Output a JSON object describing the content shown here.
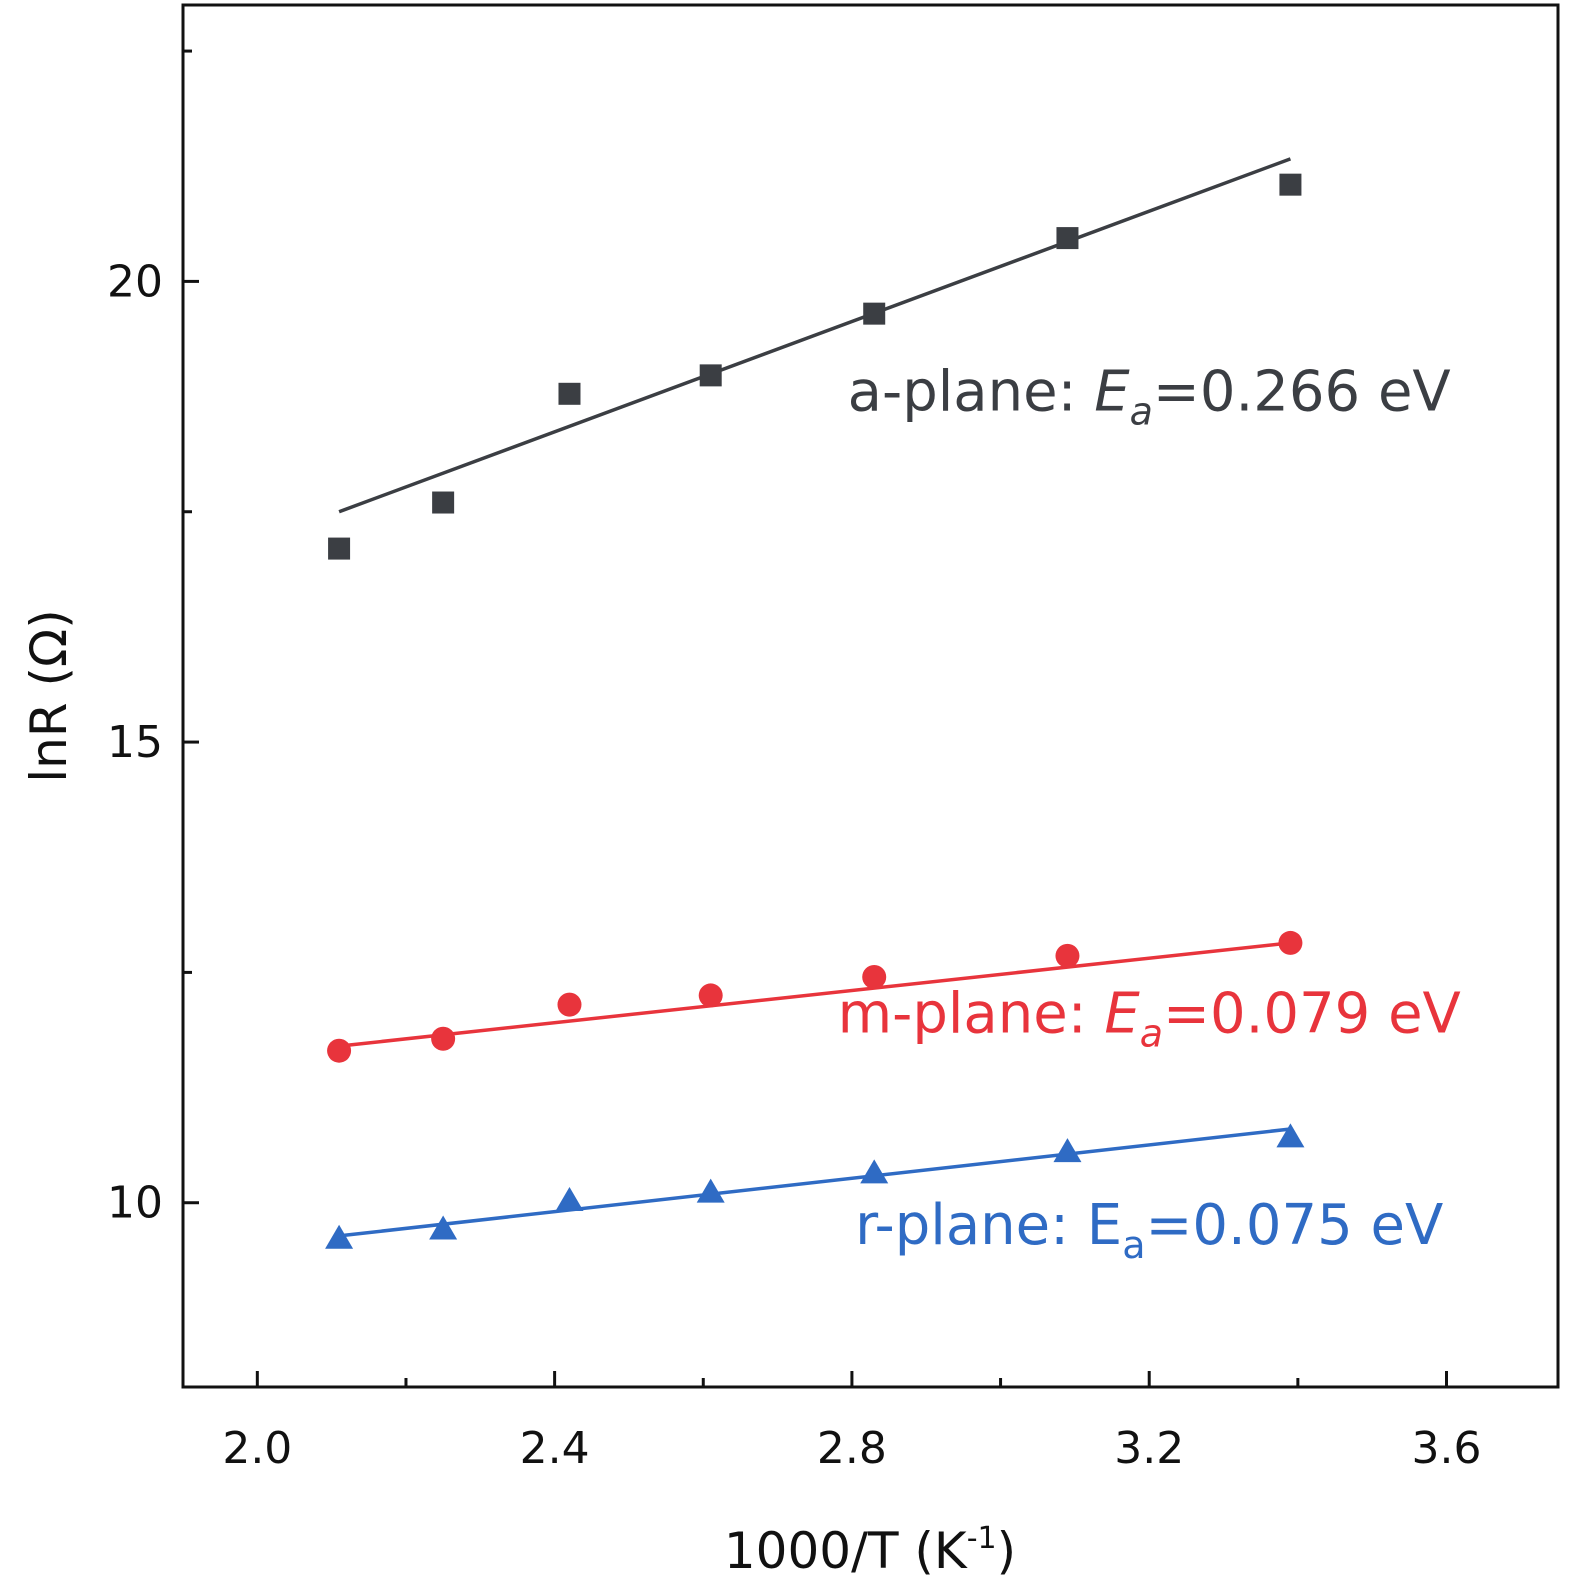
{
  "chart_data": {
    "type": "scatter",
    "title": "",
    "xlabel_main": "1000/T (K",
    "xlabel_sup": "-1",
    "xlabel_close": ")",
    "ylabel": "lnR (Ω)",
    "xlim": [
      1.9,
      3.75
    ],
    "ylim": [
      8.0,
      23.0
    ],
    "xticks": [
      2.0,
      2.4,
      2.8,
      3.2,
      3.6
    ],
    "xtick_labels": [
      "2.0",
      "2.4",
      "2.8",
      "3.2",
      "3.6"
    ],
    "xminor": [
      2.2,
      2.6,
      3.0,
      3.4
    ],
    "yticks": [
      10,
      15,
      20
    ],
    "ytick_labels": [
      "10",
      "15",
      "20"
    ],
    "yminor": [
      12.5,
      17.5,
      22.5
    ],
    "x": [
      2.11,
      2.25,
      2.42,
      2.61,
      2.83,
      3.09,
      3.39
    ],
    "series": [
      {
        "name": "a-plane",
        "marker": "square",
        "color": "#3b3e43",
        "values": [
          17.1,
          17.6,
          18.78,
          18.98,
          19.65,
          20.47,
          21.05
        ],
        "fit": {
          "x": [
            2.11,
            3.39
          ],
          "y": [
            17.5,
            21.33
          ]
        },
        "annotation": {
          "prefix": "a-plane: ",
          "sym": "E",
          "sub": "a",
          "suffix": "=0.266 eV",
          "italic": true,
          "anchor_x": 3.2,
          "anchor_y": 18.6
        }
      },
      {
        "name": "m-plane",
        "marker": "circle",
        "color": "#e8343c",
        "values": [
          11.65,
          11.78,
          12.15,
          12.25,
          12.45,
          12.68,
          12.82
        ],
        "fit": {
          "x": [
            2.11,
            3.39
          ],
          "y": [
            11.7,
            12.82
          ]
        },
        "annotation": {
          "prefix": "m-plane: ",
          "sym": "E",
          "sub": "a",
          "suffix": "=0.079 eV",
          "italic": true,
          "anchor_x": 3.2,
          "anchor_y": 11.85
        }
      },
      {
        "name": "r-plane",
        "marker": "triangle",
        "color": "#2f6bc4",
        "values": [
          9.62,
          9.72,
          10.03,
          10.12,
          10.33,
          10.56,
          10.72
        ],
        "fit": {
          "x": [
            2.11,
            3.39
          ],
          "y": [
            9.64,
            10.8
          ]
        },
        "annotation": {
          "prefix": "r-plane: ",
          "sym": "E",
          "sub": "a",
          "suffix": "=0.075 eV",
          "italic": false,
          "anchor_x": 3.2,
          "anchor_y": 9.55
        }
      }
    ]
  }
}
